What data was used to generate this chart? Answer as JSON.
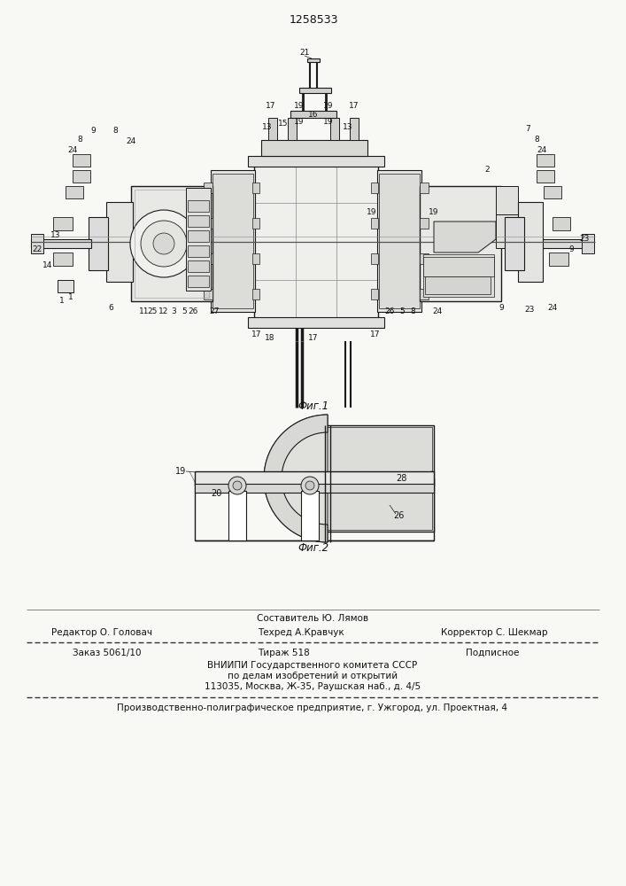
{
  "patent_number": "1258533",
  "bg_color": "#f8f8f5",
  "fig1_caption": "Фиг.1",
  "fig2_caption": "Фиг.2",
  "footer": {
    "sestavitel": "Составитель Ю. Лямов",
    "redaktor": "Редактор О. Головач",
    "tehred": "Техред А.Кравчук",
    "korrektor": "Корректор С. Шекмар",
    "zakaz": "Заказ 5061/10",
    "tirazh": "Тираж 518",
    "podpisnoe": "Подписное",
    "vniip1": "ВНИИПИ Государственного комитета СССР",
    "vniip2": "по делам изобретений и открытий",
    "vniip3": "113035, Москва, Ж-35, Раушская наб., д. 4/5",
    "proizv": "Производственно-полиграфическое предприятие, г. Ужгород, ул. Проектная, 4"
  },
  "line_color": "#1a1a1a",
  "text_color": "#111111"
}
